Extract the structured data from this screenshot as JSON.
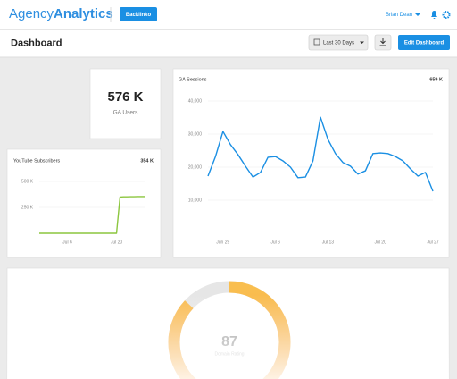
{
  "header": {
    "logo_light": "Agency",
    "logo_bold": "Analytics",
    "client": "Backlinko",
    "user": "Brian Dean"
  },
  "toolbar": {
    "title": "Dashboard",
    "date_range": "Last 30 Days",
    "edit_button": "Edit Dashboard"
  },
  "widgets": {
    "ga_users": {
      "value_label": "576 K",
      "label": "GA Users"
    },
    "youtube": {
      "title": "YouTube Subscribers",
      "total": "354 K",
      "chart_data": {
        "type": "line",
        "color": "#8cc63f",
        "grid": true,
        "categories": [
          null,
          null,
          null,
          null,
          null,
          null,
          null,
          null,
          "Jul 6",
          null,
          null,
          null,
          null,
          null,
          null,
          null,
          null,
          null,
          null,
          null,
          null,
          null,
          "Jul 20",
          null,
          null,
          null,
          null,
          null,
          null,
          null,
          null
        ],
        "values": [
          0,
          0,
          0,
          0,
          0,
          0,
          0,
          0,
          0,
          0,
          0,
          0,
          0,
          0,
          0,
          0,
          0,
          0,
          0,
          0,
          0,
          0,
          0,
          350000,
          352000,
          352000,
          353000,
          353000,
          354000,
          354000,
          354000
        ],
        "ylim": [
          0,
          500000
        ],
        "yticks": [
          {
            "value": 250000,
            "label": "250 K"
          },
          {
            "value": 500000,
            "label": "500 K"
          }
        ]
      }
    },
    "ga_sessions": {
      "title": "GA Sessions",
      "total": "659 K",
      "chart_data": {
        "type": "line",
        "color": "#1a8fe3",
        "grid": true,
        "categories": [
          null,
          null,
          "Jun 29",
          null,
          null,
          null,
          null,
          null,
          null,
          "Jul 6",
          null,
          null,
          null,
          null,
          null,
          null,
          "Jul 13",
          null,
          null,
          null,
          null,
          null,
          null,
          "Jul 20",
          null,
          null,
          null,
          null,
          null,
          null,
          "Jul 27"
        ],
        "values": [
          17300,
          23200,
          30800,
          26800,
          23800,
          20300,
          17000,
          18400,
          23000,
          23200,
          21900,
          20000,
          16800,
          17000,
          21900,
          35100,
          28400,
          24100,
          21400,
          20300,
          17900,
          18900,
          24100,
          24300,
          24100,
          23200,
          21900,
          19500,
          17300,
          18400,
          12700
        ],
        "ylim": [
          0,
          40000
        ],
        "yticks": [
          {
            "value": 10000,
            "label": "10,000"
          },
          {
            "value": 20000,
            "label": "20,000"
          },
          {
            "value": 30000,
            "label": "30,000"
          },
          {
            "value": 40000,
            "label": "40,000"
          }
        ]
      }
    },
    "domain_rating": {
      "value": 87,
      "label": "Domain Rating"
    }
  }
}
